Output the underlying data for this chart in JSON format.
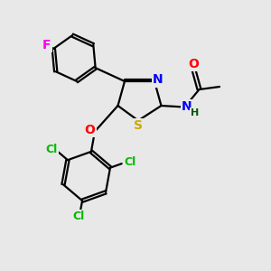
{
  "bg_color": "#e8e8e8",
  "bond_color": "#000000",
  "bond_width": 1.6,
  "atom_colors": {
    "F": "#ff00ee",
    "O": "#ff0000",
    "N": "#0000ff",
    "S": "#ccaa00",
    "Cl": "#00bb00",
    "H": "#005500"
  },
  "font_size_atoms": 10,
  "scale": 1.0
}
